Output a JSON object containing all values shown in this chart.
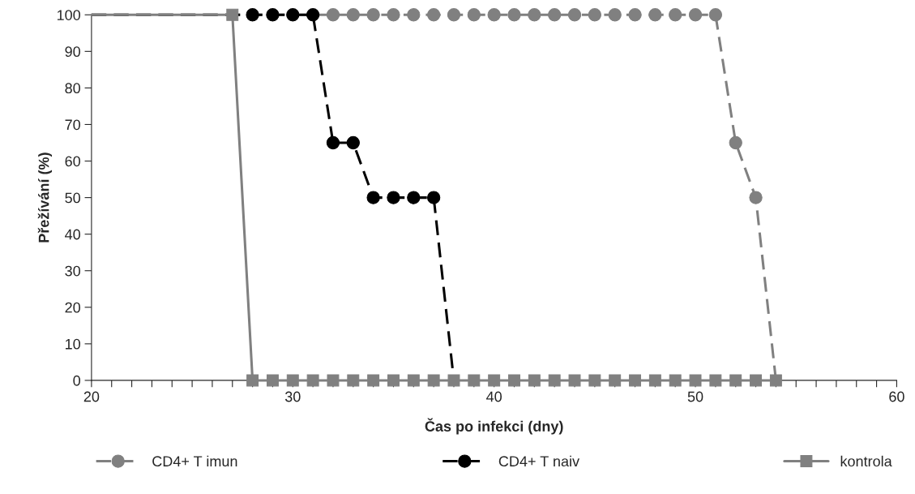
{
  "chart_data": {
    "type": "line",
    "xlabel": "Čas po infekci (dny)",
    "ylabel": "Přežívání (%)",
    "xlim": [
      20,
      60
    ],
    "ylim": [
      0,
      100
    ],
    "xticks": [
      20,
      {
        "value": 21,
        "label": null
      },
      {
        "value": 22,
        "label": null
      },
      {
        "value": 23,
        "label": null
      },
      {
        "value": 24,
        "label": null
      },
      {
        "value": 25,
        "label": null
      },
      {
        "value": 26,
        "label": null
      },
      {
        "value": 27,
        "label": null
      },
      {
        "value": 28,
        "label": null
      },
      {
        "value": 29,
        "label": null
      },
      30,
      {
        "value": 31,
        "label": null
      },
      {
        "value": 32,
        "label": null
      },
      {
        "value": 33,
        "label": null
      },
      {
        "value": 34,
        "label": null
      },
      {
        "value": 35,
        "label": null
      },
      {
        "value": 36,
        "label": null
      },
      {
        "value": 37,
        "label": null
      },
      {
        "value": 38,
        "label": null
      },
      {
        "value": 39,
        "label": null
      },
      40,
      {
        "value": 41,
        "label": null
      },
      {
        "value": 42,
        "label": null
      },
      {
        "value": 43,
        "label": null
      },
      {
        "value": 44,
        "label": null
      },
      {
        "value": 45,
        "label": null
      },
      {
        "value": 46,
        "label": null
      },
      {
        "value": 47,
        "label": null
      },
      {
        "value": 48,
        "label": null
      },
      {
        "value": 49,
        "label": null
      },
      50,
      {
        "value": 51,
        "label": null
      },
      {
        "value": 52,
        "label": null
      },
      {
        "value": 53,
        "label": null
      },
      {
        "value": 54,
        "label": null
      },
      {
        "value": 55,
        "label": null
      },
      {
        "value": 56,
        "label": null
      },
      {
        "value": 57,
        "label": null
      },
      {
        "value": 58,
        "label": null
      },
      {
        "value": 59,
        "label": null
      },
      60
    ],
    "yticks": [
      0,
      10,
      20,
      30,
      40,
      50,
      60,
      70,
      80,
      90,
      100
    ],
    "grid": false,
    "legend": "bottom",
    "series": [
      {
        "name": "CD4+ T imun",
        "color": "#808080",
        "marker": "circle",
        "line_style": "dashed",
        "x": [
          20,
          28,
          29,
          30,
          31,
          32,
          33,
          34,
          35,
          36,
          37,
          38,
          39,
          40,
          41,
          42,
          43,
          44,
          45,
          46,
          47,
          48,
          49,
          50,
          51,
          52,
          53,
          54
        ],
        "values": [
          100,
          100,
          100,
          100,
          100,
          100,
          100,
          100,
          100,
          100,
          100,
          100,
          100,
          100,
          100,
          100,
          100,
          100,
          100,
          100,
          100,
          100,
          100,
          100,
          100,
          65,
          50,
          0
        ]
      },
      {
        "name": "CD4+ T naiv",
        "color": "#000000",
        "marker": "circle",
        "line_style": "dashed",
        "x": [
          20,
          28,
          29,
          30,
          31,
          32,
          33,
          34,
          35,
          36,
          37,
          38
        ],
        "values": [
          100,
          100,
          100,
          100,
          100,
          65,
          65,
          50,
          50,
          50,
          50,
          0
        ]
      },
      {
        "name": "kontrola",
        "color": "#808080",
        "marker": "square",
        "line_style": "solid",
        "x": [
          20,
          27,
          28,
          29,
          30,
          31,
          32,
          33,
          34,
          35,
          36,
          37,
          38,
          39,
          40,
          41,
          42,
          43,
          44,
          45,
          46,
          47,
          48,
          49,
          50,
          51,
          52,
          53,
          54
        ],
        "values": [
          100,
          100,
          0,
          0,
          0,
          0,
          0,
          0,
          0,
          0,
          0,
          0,
          0,
          0,
          0,
          0,
          0,
          0,
          0,
          0,
          0,
          0,
          0,
          0,
          0,
          0,
          0,
          0,
          0
        ]
      }
    ]
  }
}
